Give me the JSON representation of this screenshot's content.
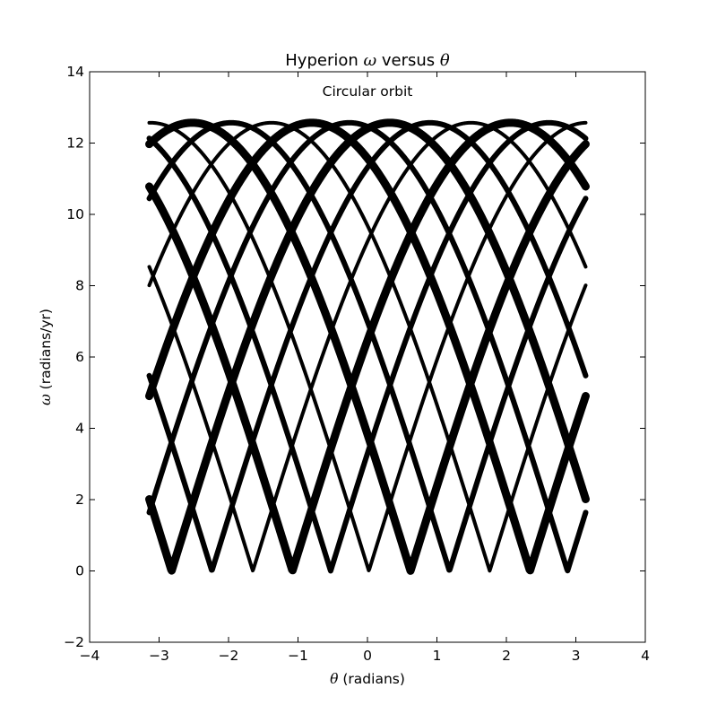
{
  "chart_data": {
    "type": "line",
    "title_parts": [
      "Hyperion ",
      "ω",
      " versus ",
      "θ"
    ],
    "annotation": "Circular orbit",
    "xlabel_parts": [
      "θ",
      " (radians)"
    ],
    "ylabel_parts": [
      "ω",
      " (radians/yr)"
    ],
    "xlim": [
      -4,
      4
    ],
    "ylim": [
      -2,
      14
    ],
    "xticks": [
      -4,
      -3,
      -2,
      -1,
      0,
      1,
      2,
      3,
      4
    ],
    "yticks": [
      -2,
      0,
      2,
      4,
      6,
      8,
      10,
      12,
      14
    ],
    "xtick_labels": [
      "−4",
      "−3",
      "−2",
      "−1",
      "0",
      "1",
      "2",
      "3",
      "4"
    ],
    "ytick_labels": [
      "−2",
      "0",
      "2",
      "4",
      "6",
      "8",
      "10",
      "12",
      "14"
    ],
    "grid": false,
    "line_color": "#000000",
    "theta_range": [
      -3.14159,
      3.14159
    ],
    "omega_peak": 12.57,
    "series": [
      {
        "min_theta": -2.82
      },
      {
        "min_theta": -2.24
      },
      {
        "min_theta": -1.65
      },
      {
        "min_theta": -1.08
      },
      {
        "min_theta": -0.53
      },
      {
        "min_theta": 0.02
      },
      {
        "min_theta": 0.62
      },
      {
        "min_theta": 1.18
      },
      {
        "min_theta": 1.76
      },
      {
        "min_theta": 2.34
      },
      {
        "min_theta": 2.88
      }
    ]
  }
}
